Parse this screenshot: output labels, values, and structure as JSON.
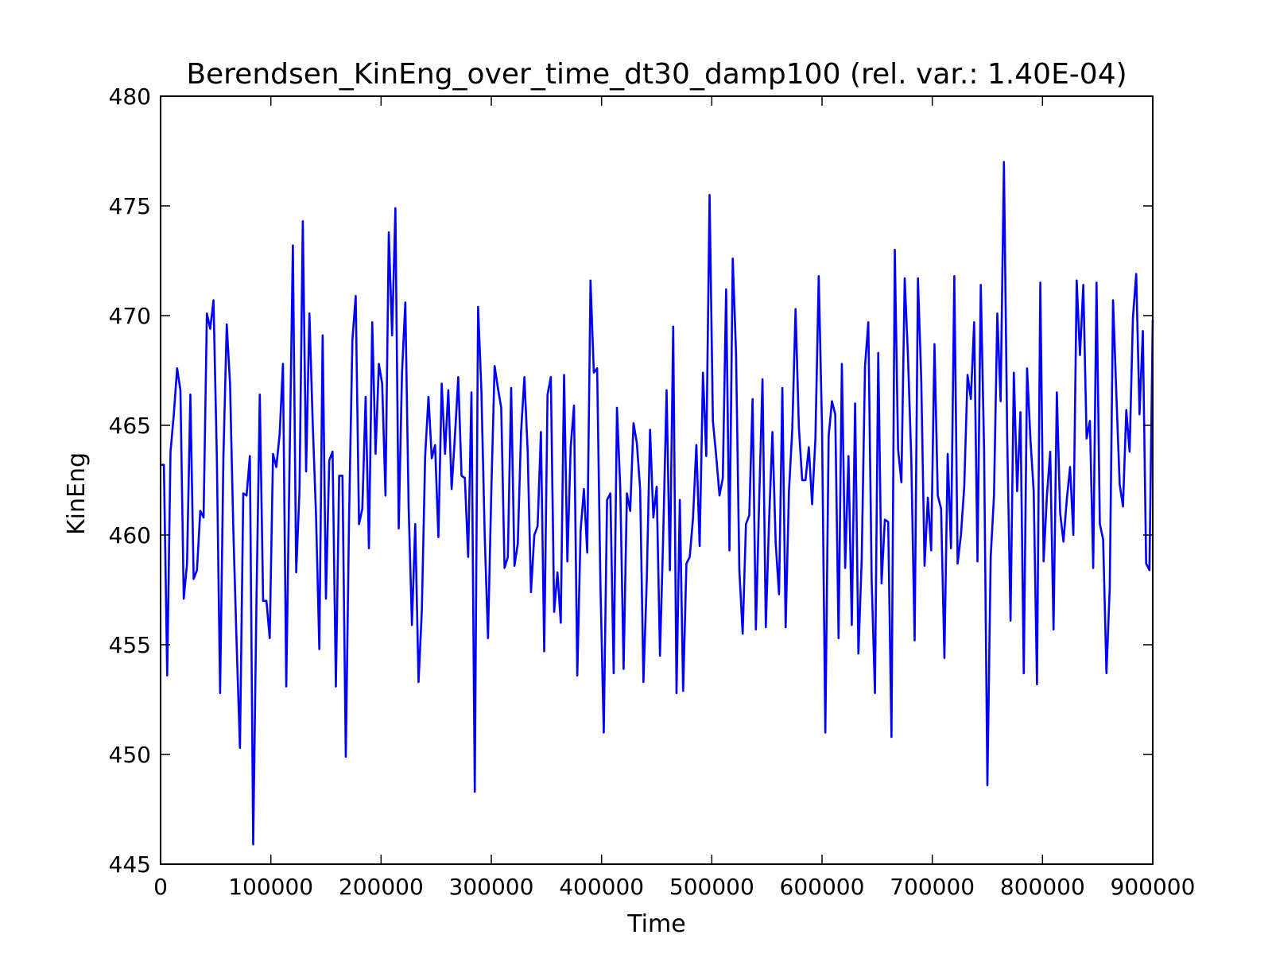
{
  "chart_data": {
    "type": "line",
    "title": "Berendsen_KinEng_over_time_dt30_damp100 (rel. var.: 1.40E-04)",
    "xlabel": "Time",
    "ylabel": "KinEng",
    "xlim": [
      0,
      900000
    ],
    "ylim": [
      445,
      480
    ],
    "x_ticks": [
      0,
      100000,
      200000,
      300000,
      400000,
      500000,
      600000,
      700000,
      800000,
      900000
    ],
    "y_ticks": [
      445,
      450,
      455,
      460,
      465,
      470,
      475,
      480
    ],
    "x_tick_labels": [
      "0",
      "100000",
      "200000",
      "300000",
      "400000",
      "500000",
      "600000",
      "700000",
      "800000",
      "900000"
    ],
    "y_tick_labels": [
      "445",
      "450",
      "455",
      "460",
      "465",
      "470",
      "475",
      "480"
    ],
    "grid": false,
    "series": [
      {
        "color": "#0000ff",
        "x_start": 0,
        "x_step": 3000,
        "values": [
          463.2,
          463.2,
          453.6,
          463.8,
          465.5,
          467.6,
          466.6,
          457.1,
          458.7,
          466.4,
          458.0,
          458.4,
          461.1,
          460.8,
          470.1,
          469.4,
          470.7,
          463.6,
          452.8,
          463.6,
          469.6,
          466.9,
          460.2,
          455.0,
          450.3,
          461.9,
          461.8,
          463.6,
          445.9,
          457.1,
          466.4,
          457.0,
          457.0,
          455.3,
          463.7,
          463.1,
          464.6,
          467.8,
          453.1,
          463.3,
          473.2,
          458.3,
          462.0,
          474.3,
          462.9,
          470.1,
          465.1,
          460.9,
          454.8,
          469.1,
          457.1,
          463.4,
          463.8,
          453.1,
          462.7,
          462.7,
          449.9,
          460.9,
          468.9,
          470.9,
          460.5,
          461.2,
          466.3,
          459.4,
          469.7,
          463.7,
          467.8,
          466.9,
          461.8,
          473.8,
          469.1,
          474.9,
          460.3,
          467.4,
          470.6,
          461.3,
          455.9,
          460.5,
          453.3,
          456.6,
          463.6,
          466.3,
          463.5,
          464.1,
          459.9,
          466.9,
          463.7,
          466.6,
          462.1,
          464.5,
          467.2,
          462.7,
          462.6,
          459.0,
          466.5,
          448.3,
          470.4,
          466.6,
          460.0,
          455.3,
          462.0,
          467.7,
          466.7,
          465.8,
          458.5,
          459.0,
          466.7,
          458.6,
          459.6,
          464.7,
          467.2,
          463.8,
          457.4,
          460.0,
          460.4,
          464.7,
          454.7,
          466.4,
          467.2,
          456.5,
          458.3,
          456.0,
          467.3,
          458.8,
          464.0,
          465.9,
          453.6,
          460.2,
          462.1,
          459.2,
          471.6,
          467.4,
          467.6,
          457.7,
          451.0,
          461.6,
          461.9,
          453.7,
          465.8,
          462.1,
          453.9,
          461.9,
          461.1,
          465.1,
          464.2,
          462.1,
          453.3,
          457.9,
          464.8,
          460.8,
          462.2,
          454.5,
          460.1,
          466.6,
          458.4,
          469.5,
          452.8,
          461.6,
          452.9,
          458.7,
          459.0,
          460.8,
          464.1,
          459.5,
          467.4,
          463.6,
          475.5,
          465.2,
          463.6,
          461.8,
          462.6,
          471.2,
          459.3,
          472.6,
          468.3,
          458.4,
          455.5,
          460.5,
          460.9,
          466.2,
          455.7,
          461.6,
          467.1,
          455.8,
          460.7,
          464.7,
          459.6,
          457.3,
          466.7,
          455.8,
          462.0,
          464.8,
          470.3,
          464.9,
          462.5,
          462.5,
          464.0,
          461.4,
          464.4,
          471.8,
          464.9,
          451.0,
          464.5,
          466.1,
          465.5,
          455.3,
          467.8,
          458.5,
          463.6,
          455.9,
          466.0,
          454.6,
          458.9,
          467.7,
          469.7,
          458.0,
          452.8,
          468.3,
          457.8,
          460.7,
          460.6,
          450.8,
          473.0,
          463.9,
          462.4,
          471.7,
          468.1,
          463.4,
          455.2,
          471.7,
          467.1,
          458.6,
          461.7,
          459.3,
          468.7,
          461.8,
          461.2,
          454.4,
          463.7,
          459.4,
          471.8,
          458.7,
          460.0,
          462.2,
          467.3,
          466.2,
          469.7,
          458.8,
          471.4,
          463.9,
          448.6,
          459.0,
          461.8,
          470.1,
          466.1,
          477.0,
          464.4,
          456.1,
          467.4,
          462.0,
          465.6,
          453.7,
          467.6,
          464.4,
          462.0,
          453.2,
          471.5,
          458.8,
          461.8,
          463.8,
          455.7,
          466.5,
          461.0,
          459.7,
          461.6,
          463.1,
          460.0,
          471.6,
          468.2,
          471.4,
          464.4,
          465.2,
          458.5,
          471.5,
          460.5,
          459.8,
          453.7,
          457.6,
          470.7,
          466.4,
          462.3,
          461.3,
          465.7,
          463.8,
          469.9,
          471.9,
          465.5,
          469.3,
          458.7,
          458.4,
          469.8
        ]
      }
    ]
  }
}
